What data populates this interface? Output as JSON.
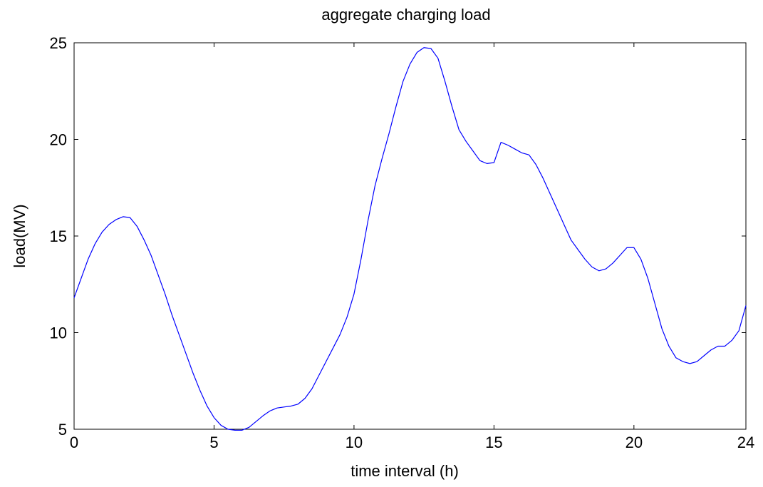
{
  "chart_data": {
    "type": "line",
    "title": "aggregate charging load",
    "xlabel": "time interval (h)",
    "ylabel": "load(MV)",
    "xlim": [
      0,
      24
    ],
    "ylim": [
      5,
      25
    ],
    "xticks": [
      0,
      5,
      10,
      15,
      20,
      24
    ],
    "yticks": [
      5,
      10,
      15,
      20,
      25
    ],
    "grid": false,
    "colors": {
      "line": "#0000ff",
      "axes": "#000000",
      "background": "#ffffff"
    },
    "series": [
      {
        "x": [
          0,
          0.25,
          0.5,
          0.75,
          1.0,
          1.25,
          1.5,
          1.75,
          2.0,
          2.25,
          2.5,
          2.75,
          3.0,
          3.25,
          3.5,
          3.75,
          4.0,
          4.25,
          4.5,
          4.75,
          5.0,
          5.25,
          5.5,
          5.75,
          6.0,
          6.25,
          6.5,
          6.75,
          7.0,
          7.25,
          7.5,
          7.75,
          8.0,
          8.25,
          8.5,
          8.75,
          9.0,
          9.25,
          9.5,
          9.75,
          10.0,
          10.25,
          10.5,
          10.75,
          11.0,
          11.25,
          11.5,
          11.75,
          12.0,
          12.25,
          12.5,
          12.75,
          13.0,
          13.25,
          13.5,
          13.75,
          14.0,
          14.25,
          14.5,
          14.75,
          15.0,
          15.25,
          15.5,
          15.75,
          16.0,
          16.25,
          16.5,
          16.75,
          17.0,
          17.25,
          17.5,
          17.75,
          18.0,
          18.25,
          18.5,
          18.75,
          19.0,
          19.25,
          19.5,
          19.75,
          20.0,
          20.25,
          20.5,
          20.75,
          21.0,
          21.25,
          21.5,
          21.75,
          22.0,
          22.25,
          22.5,
          22.75,
          23.0,
          23.25,
          23.5,
          23.75,
          24.0
        ],
        "y": [
          11.8,
          12.8,
          13.8,
          14.6,
          15.2,
          15.6,
          15.85,
          16.0,
          15.95,
          15.5,
          14.8,
          14.0,
          13.0,
          12.0,
          10.9,
          9.9,
          8.9,
          7.9,
          7.0,
          6.2,
          5.6,
          5.2,
          5.0,
          4.95,
          4.95,
          5.1,
          5.4,
          5.7,
          5.95,
          6.1,
          6.15,
          6.2,
          6.3,
          6.6,
          7.1,
          7.8,
          8.5,
          9.2,
          9.9,
          10.8,
          12.0,
          13.8,
          15.8,
          17.6,
          19.0,
          20.3,
          21.7,
          23.0,
          23.9,
          24.5,
          24.75,
          24.7,
          24.2,
          23.0,
          21.7,
          20.5,
          19.9,
          19.4,
          18.9,
          18.75,
          18.8,
          19.85,
          19.7,
          19.5,
          19.3,
          19.2,
          18.7,
          18.0,
          17.2,
          16.4,
          15.6,
          14.8,
          14.3,
          13.8,
          13.4,
          13.2,
          13.3,
          13.6,
          14.0,
          14.4,
          14.4,
          13.8,
          12.8,
          11.5,
          10.2,
          9.3,
          8.7,
          8.5,
          8.4,
          8.5,
          8.8,
          9.1,
          9.3,
          9.3,
          9.6,
          10.1,
          11.4
        ]
      }
    ]
  }
}
